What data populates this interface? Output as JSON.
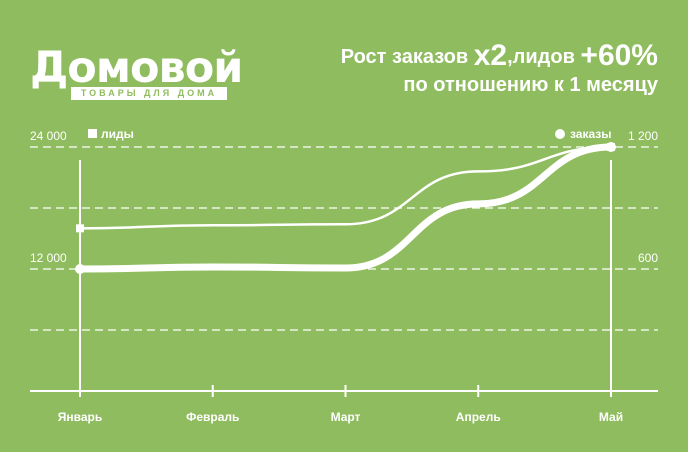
{
  "brand": {
    "name": "Домовой",
    "tagline": "ТОВАРЫ ДЛЯ ДОМА"
  },
  "headline": {
    "prefix": "Рост заказов",
    "orders_growth": "х2",
    "middle": ",лидов",
    "leads_growth": "+60%",
    "line2": "по отношению к 1 месяцу"
  },
  "colors": {
    "background": "#8fbc5e",
    "foreground": "#ffffff",
    "grid": "#ffffff"
  },
  "chart_data": {
    "type": "line",
    "categories": [
      "Январь",
      "Февраль",
      "Март",
      "Апрель",
      "Май"
    ],
    "left_axis": {
      "ticks": [
        12000,
        24000
      ],
      "tick_labels": [
        "12 000",
        "24 000"
      ],
      "range": [
        0,
        24000
      ]
    },
    "right_axis": {
      "ticks": [
        600,
        1200
      ],
      "tick_labels": [
        "600",
        "1 200"
      ],
      "range": [
        0,
        1200
      ]
    },
    "series": [
      {
        "name": "лиды",
        "axis": "left",
        "marker": "square",
        "values": [
          16000,
          16300,
          16400,
          21600,
          24000
        ]
      },
      {
        "name": "заказы",
        "axis": "right",
        "marker": "circle",
        "values": [
          600,
          610,
          605,
          920,
          1200
        ]
      }
    ],
    "legend": {
      "left": "top-left",
      "right": "top-right"
    },
    "grid": true
  }
}
